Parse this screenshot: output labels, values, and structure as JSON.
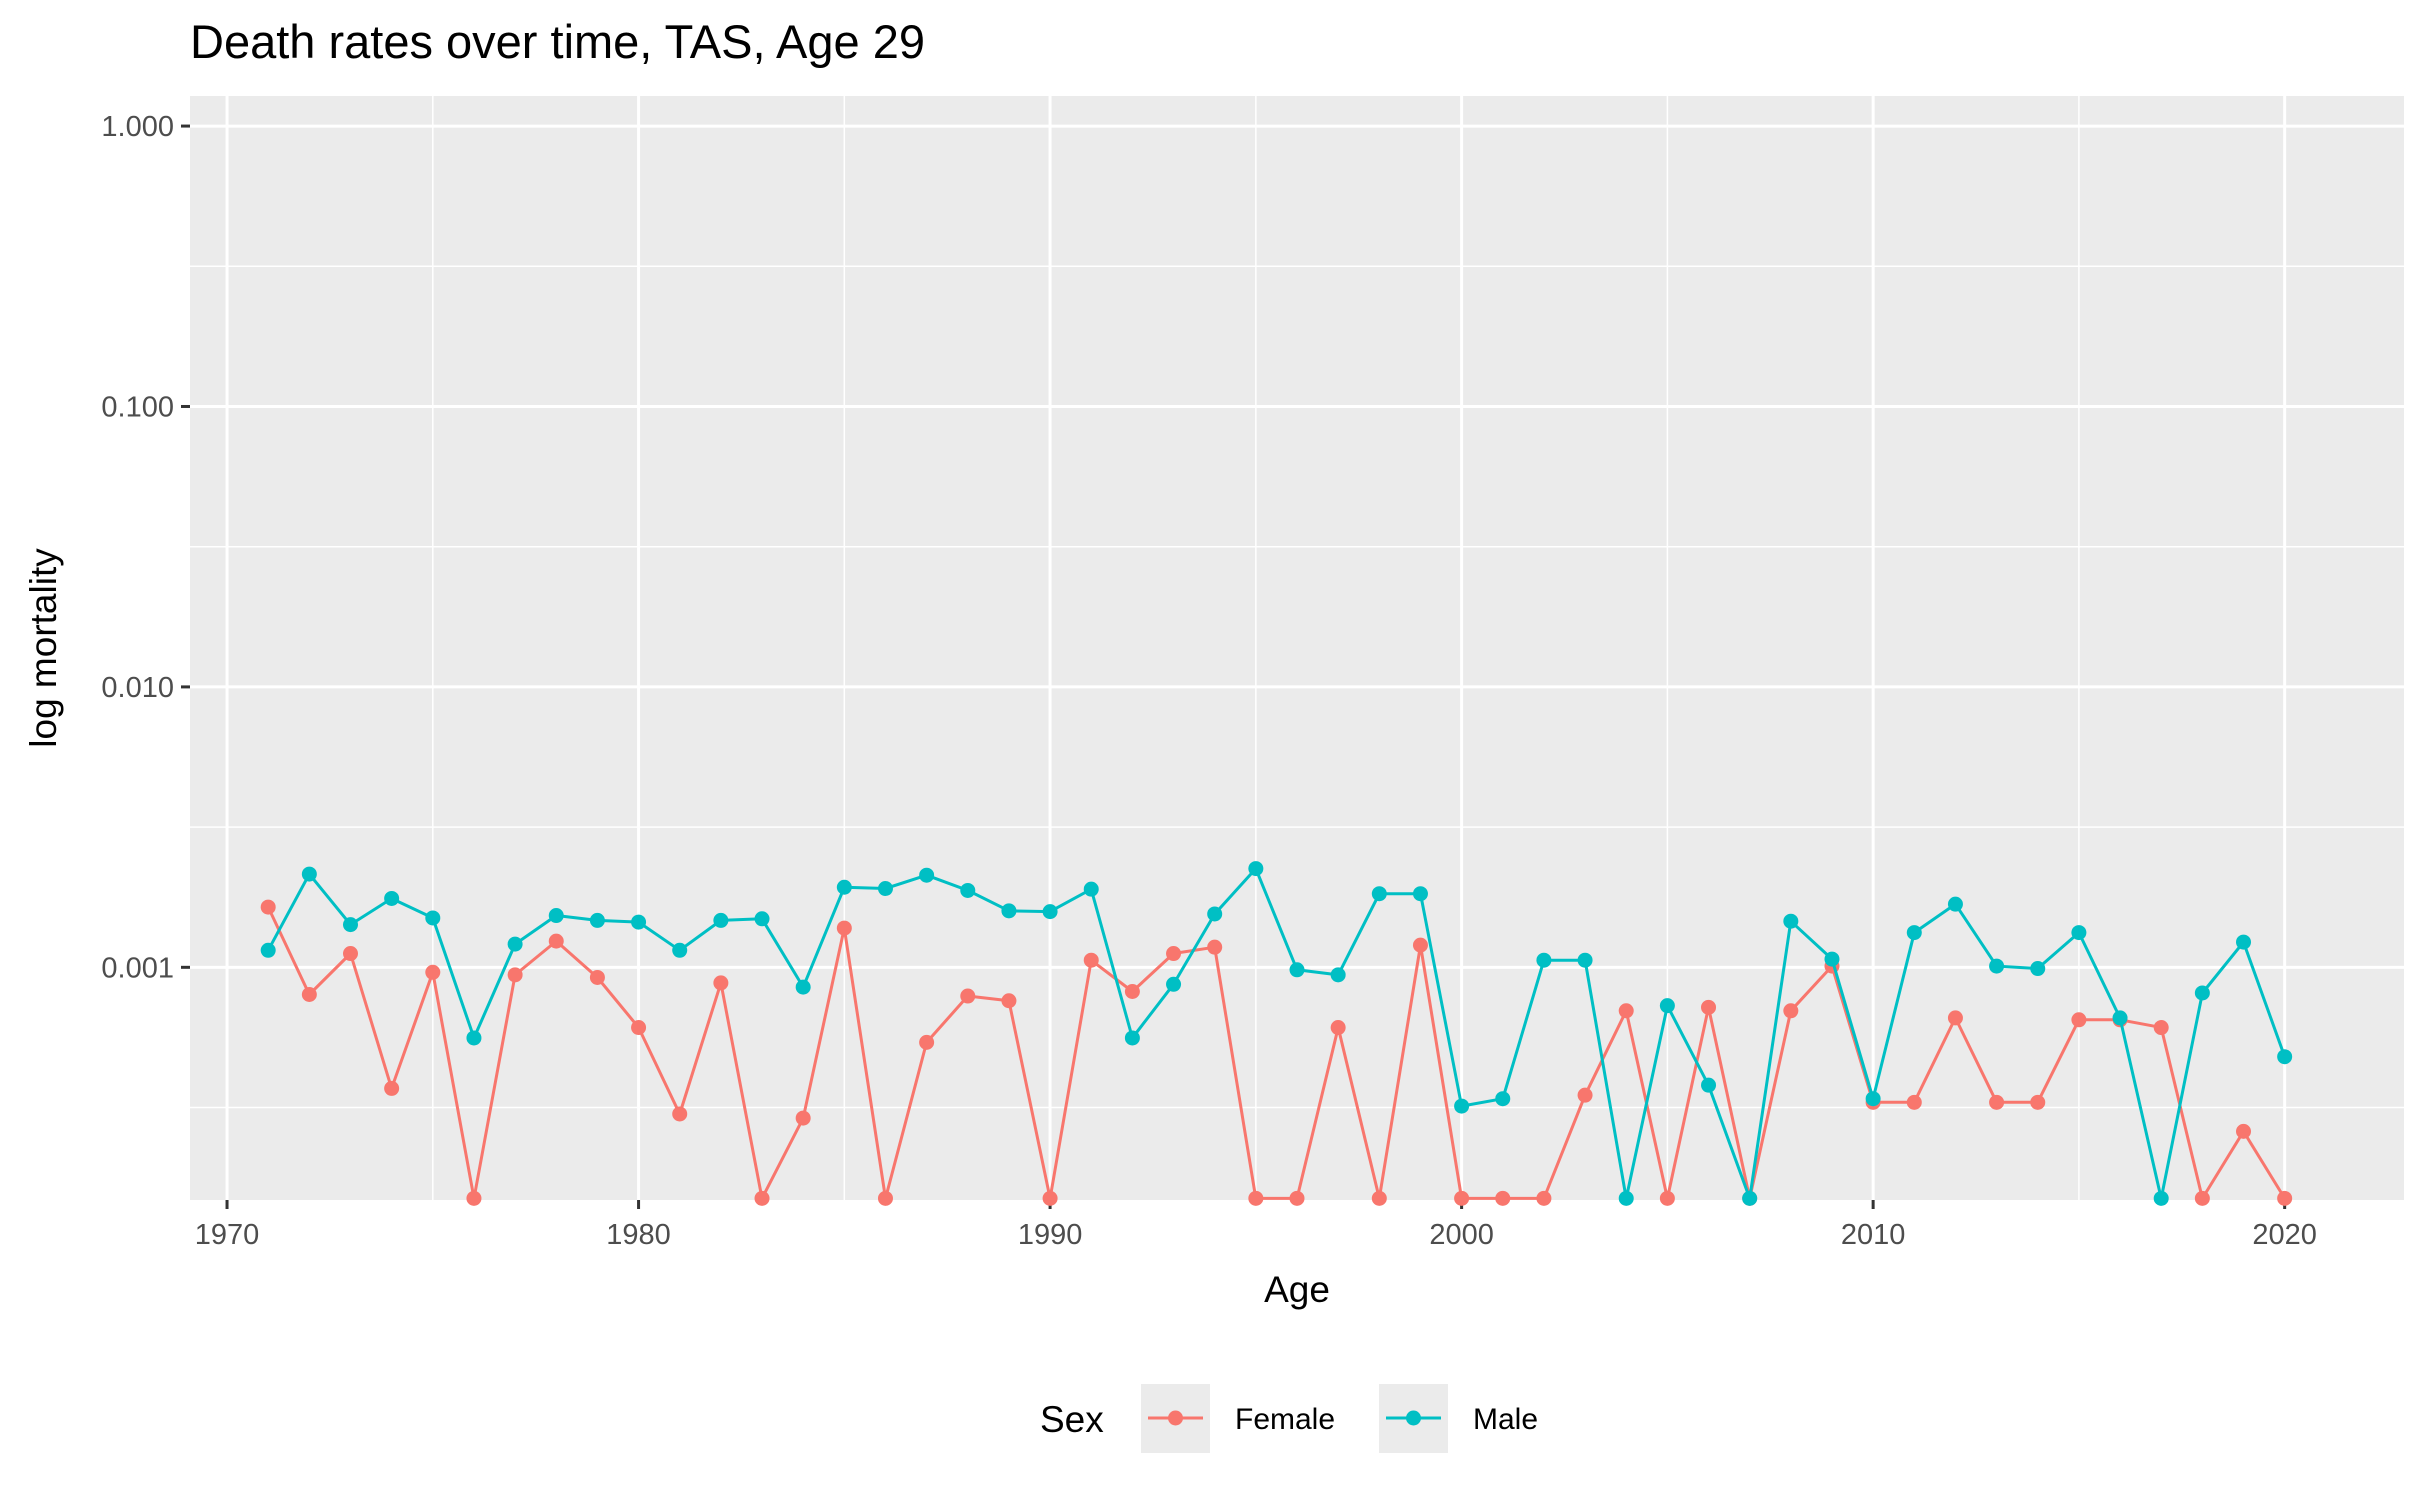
{
  "chart_data": {
    "type": "line",
    "title": "Death rates over time, TAS, Age 29",
    "xlabel": "Age",
    "ylabel": "log mortality",
    "x_scale": "linear",
    "y_scale": "log10",
    "xlim": [
      1969.1,
      2022.9
    ],
    "ylim": [
      0.000148,
      1.28
    ],
    "x_ticks": [
      1970,
      1980,
      1990,
      2000,
      2010,
      2020
    ],
    "x_tick_labels": [
      "1970",
      "1980",
      "1990",
      "2000",
      "2010",
      "2020"
    ],
    "y_ticks": [
      0.001,
      0.01,
      0.1,
      1
    ],
    "y_tick_labels": [
      "0.001",
      "0.010",
      "0.100",
      "1.000"
    ],
    "grid": true,
    "legend": {
      "title": "Sex",
      "position": "bottom"
    },
    "x": [
      1971,
      1972,
      1973,
      1974,
      1975,
      1976,
      1977,
      1978,
      1979,
      1980,
      1981,
      1982,
      1983,
      1984,
      1985,
      1986,
      1987,
      1988,
      1989,
      1990,
      1991,
      1992,
      1993,
      1994,
      1995,
      1996,
      1997,
      1998,
      1999,
      2000,
      2001,
      2002,
      2003,
      2004,
      2005,
      2006,
      2007,
      2008,
      2009,
      2010,
      2011,
      2012,
      2013,
      2014,
      2015,
      2016,
      2017,
      2018,
      2019,
      2020
    ],
    "series": [
      {
        "name": "Female",
        "color": "#F8766D",
        "values": [
          0.00164,
          0.0008,
          0.00112,
          0.00037,
          0.00096,
          0.00015,
          0.00094,
          0.00124,
          0.00092,
          0.00061,
          0.0003,
          0.00088,
          0.00015,
          0.00029,
          0.00138,
          0.00015,
          0.00054,
          0.00079,
          0.00076,
          0.00015,
          0.00106,
          0.00082,
          0.00112,
          0.00118,
          0.00015,
          0.00015,
          0.00061,
          0.00015,
          0.0012,
          0.00015,
          0.00015,
          0.00015,
          0.00035,
          0.0007,
          0.00015,
          0.00072,
          0.00015,
          0.0007,
          0.00101,
          0.00033,
          0.00033,
          0.00066,
          0.00033,
          0.00033,
          0.00065,
          0.00065,
          0.00061,
          0.00015,
          0.00026,
          0.00015
        ]
      },
      {
        "name": "Male",
        "color": "#00BFC4",
        "values": [
          0.00115,
          0.00215,
          0.00142,
          0.00176,
          0.0015,
          0.00056,
          0.00121,
          0.00153,
          0.00147,
          0.00145,
          0.00115,
          0.00147,
          0.00149,
          0.00085,
          0.00193,
          0.00191,
          0.00213,
          0.00188,
          0.00159,
          0.00158,
          0.0019,
          0.00056,
          0.00087,
          0.00155,
          0.00225,
          0.00098,
          0.00094,
          0.00183,
          0.00183,
          0.00032,
          0.00034,
          0.00106,
          0.00106,
          0.00015,
          0.00073,
          0.00038,
          0.00015,
          0.00146,
          0.00107,
          0.00034,
          0.00133,
          0.00168,
          0.00101,
          0.00099,
          0.00133,
          0.00066,
          0.00015,
          0.00081,
          0.00123,
          0.00048
        ]
      }
    ]
  }
}
